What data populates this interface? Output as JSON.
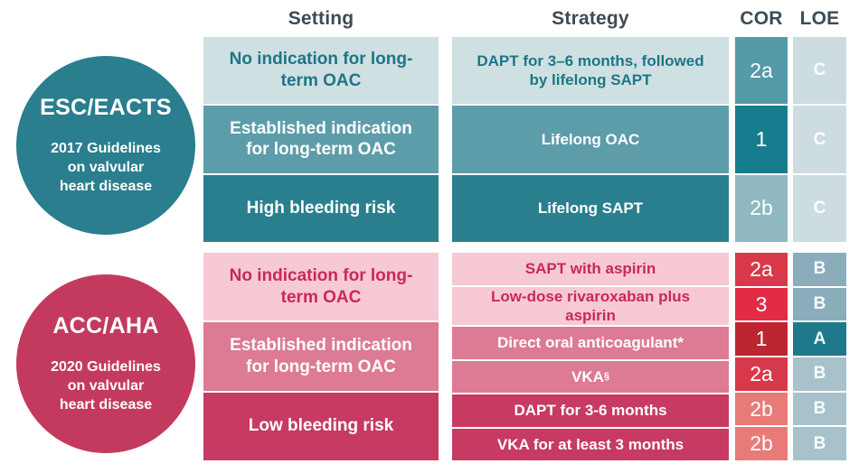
{
  "header": {
    "setting": "Setting",
    "strategy": "Strategy",
    "cor": "COR",
    "loe": "LOE"
  },
  "colors": {
    "esc_teal_dark": "#2a7e8e",
    "esc_teal_medium": "#5d9daa",
    "esc_teal_light": "#cfe0e3",
    "esc_text_teal": "#1d7686",
    "acc_crimson_dark": "#c73a62",
    "acc_pink_medium": "#dc7b93",
    "acc_pink_light": "#f7c9d4",
    "acc_text_crimson": "#c9285a",
    "header_text": "#3d4b55"
  },
  "esc": {
    "circle": {
      "title": "ESC/EACTS",
      "line1": "2017 Guidelines",
      "line2": "on valvular",
      "line3": "heart disease",
      "color": "#2a7e8e"
    },
    "settings": [
      {
        "label": "No indication for long-term OAC",
        "bg": "#cfe0e3",
        "fg": "#1d7686"
      },
      {
        "label": "Established indication for long-term OAC",
        "bg": "#5d9daa",
        "fg": "#ffffff"
      },
      {
        "label": "High bleeding risk",
        "bg": "#2a7f8f",
        "fg": "#ffffff"
      }
    ],
    "rows": [
      {
        "strategy": "DAPT for 3–6 months, followed by lifelong SAPT",
        "bg": "#cfe0e3",
        "fg": "#1d7686",
        "cor": "2a",
        "cor_bg": "#549aa8",
        "loe": "C",
        "loe_bg": "#cddce0"
      },
      {
        "strategy": "Lifelong OAC",
        "bg": "#5d9daa",
        "fg": "#ffffff",
        "cor": "1",
        "cor_bg": "#177d8e",
        "loe": "C",
        "loe_bg": "#cddce0"
      },
      {
        "strategy": "Lifelong SAPT",
        "bg": "#2a7f8f",
        "fg": "#ffffff",
        "cor": "2b",
        "cor_bg": "#8fb8c0",
        "loe": "C",
        "loe_bg": "#cddce0"
      }
    ]
  },
  "acc": {
    "circle": {
      "title": "ACC/AHA",
      "line1": "2020 Guidelines",
      "line2": "on valvular",
      "line3": "heart disease",
      "color": "#c43a5f"
    },
    "settings": [
      {
        "label": "No indication for long-term OAC",
        "bg": "#f7c9d4",
        "fg": "#c9285a"
      },
      {
        "label": "Established indication for long-term OAC",
        "bg": "#dc7b93",
        "fg": "#ffffff"
      },
      {
        "label": "Low bleeding risk",
        "bg": "#c73a62",
        "fg": "#ffffff"
      }
    ],
    "rows": [
      {
        "strategy": "SAPT with aspirin",
        "bg": "#f7c9d4",
        "fg": "#c9285a",
        "cor": "2a",
        "cor_bg": "#d8394a",
        "loe": "B",
        "loe_bg": "#8badbb"
      },
      {
        "strategy": "Low-dose rivaroxaban plus aspirin",
        "bg": "#f7c9d4",
        "fg": "#c9285a",
        "cor": "3",
        "cor_bg": "#e32b45",
        "loe": "B",
        "loe_bg": "#8badbb"
      },
      {
        "strategy": "Direct oral anticoagulant*",
        "bg": "#dc7b93",
        "fg": "#ffffff",
        "cor": "1",
        "cor_bg": "#bd2530",
        "loe": "A",
        "loe_bg": "#1e7a8b"
      },
      {
        "strategy": "VKA",
        "strategy_sup": "§",
        "bg": "#dc7b93",
        "fg": "#ffffff",
        "cor": "2a",
        "cor_bg": "#d8394a",
        "loe": "B",
        "loe_bg": "#a7c2ca"
      },
      {
        "strategy": "DAPT for 3-6 months",
        "bg": "#c73a62",
        "fg": "#ffffff",
        "cor": "2b",
        "cor_bg": "#e87a78",
        "loe": "B",
        "loe_bg": "#a7c2ca"
      },
      {
        "strategy": "VKA for at least 3 months",
        "bg": "#c73a62",
        "fg": "#ffffff",
        "cor": "2b",
        "cor_bg": "#e87a78",
        "loe": "B",
        "loe_bg": "#a7c2ca"
      }
    ]
  }
}
